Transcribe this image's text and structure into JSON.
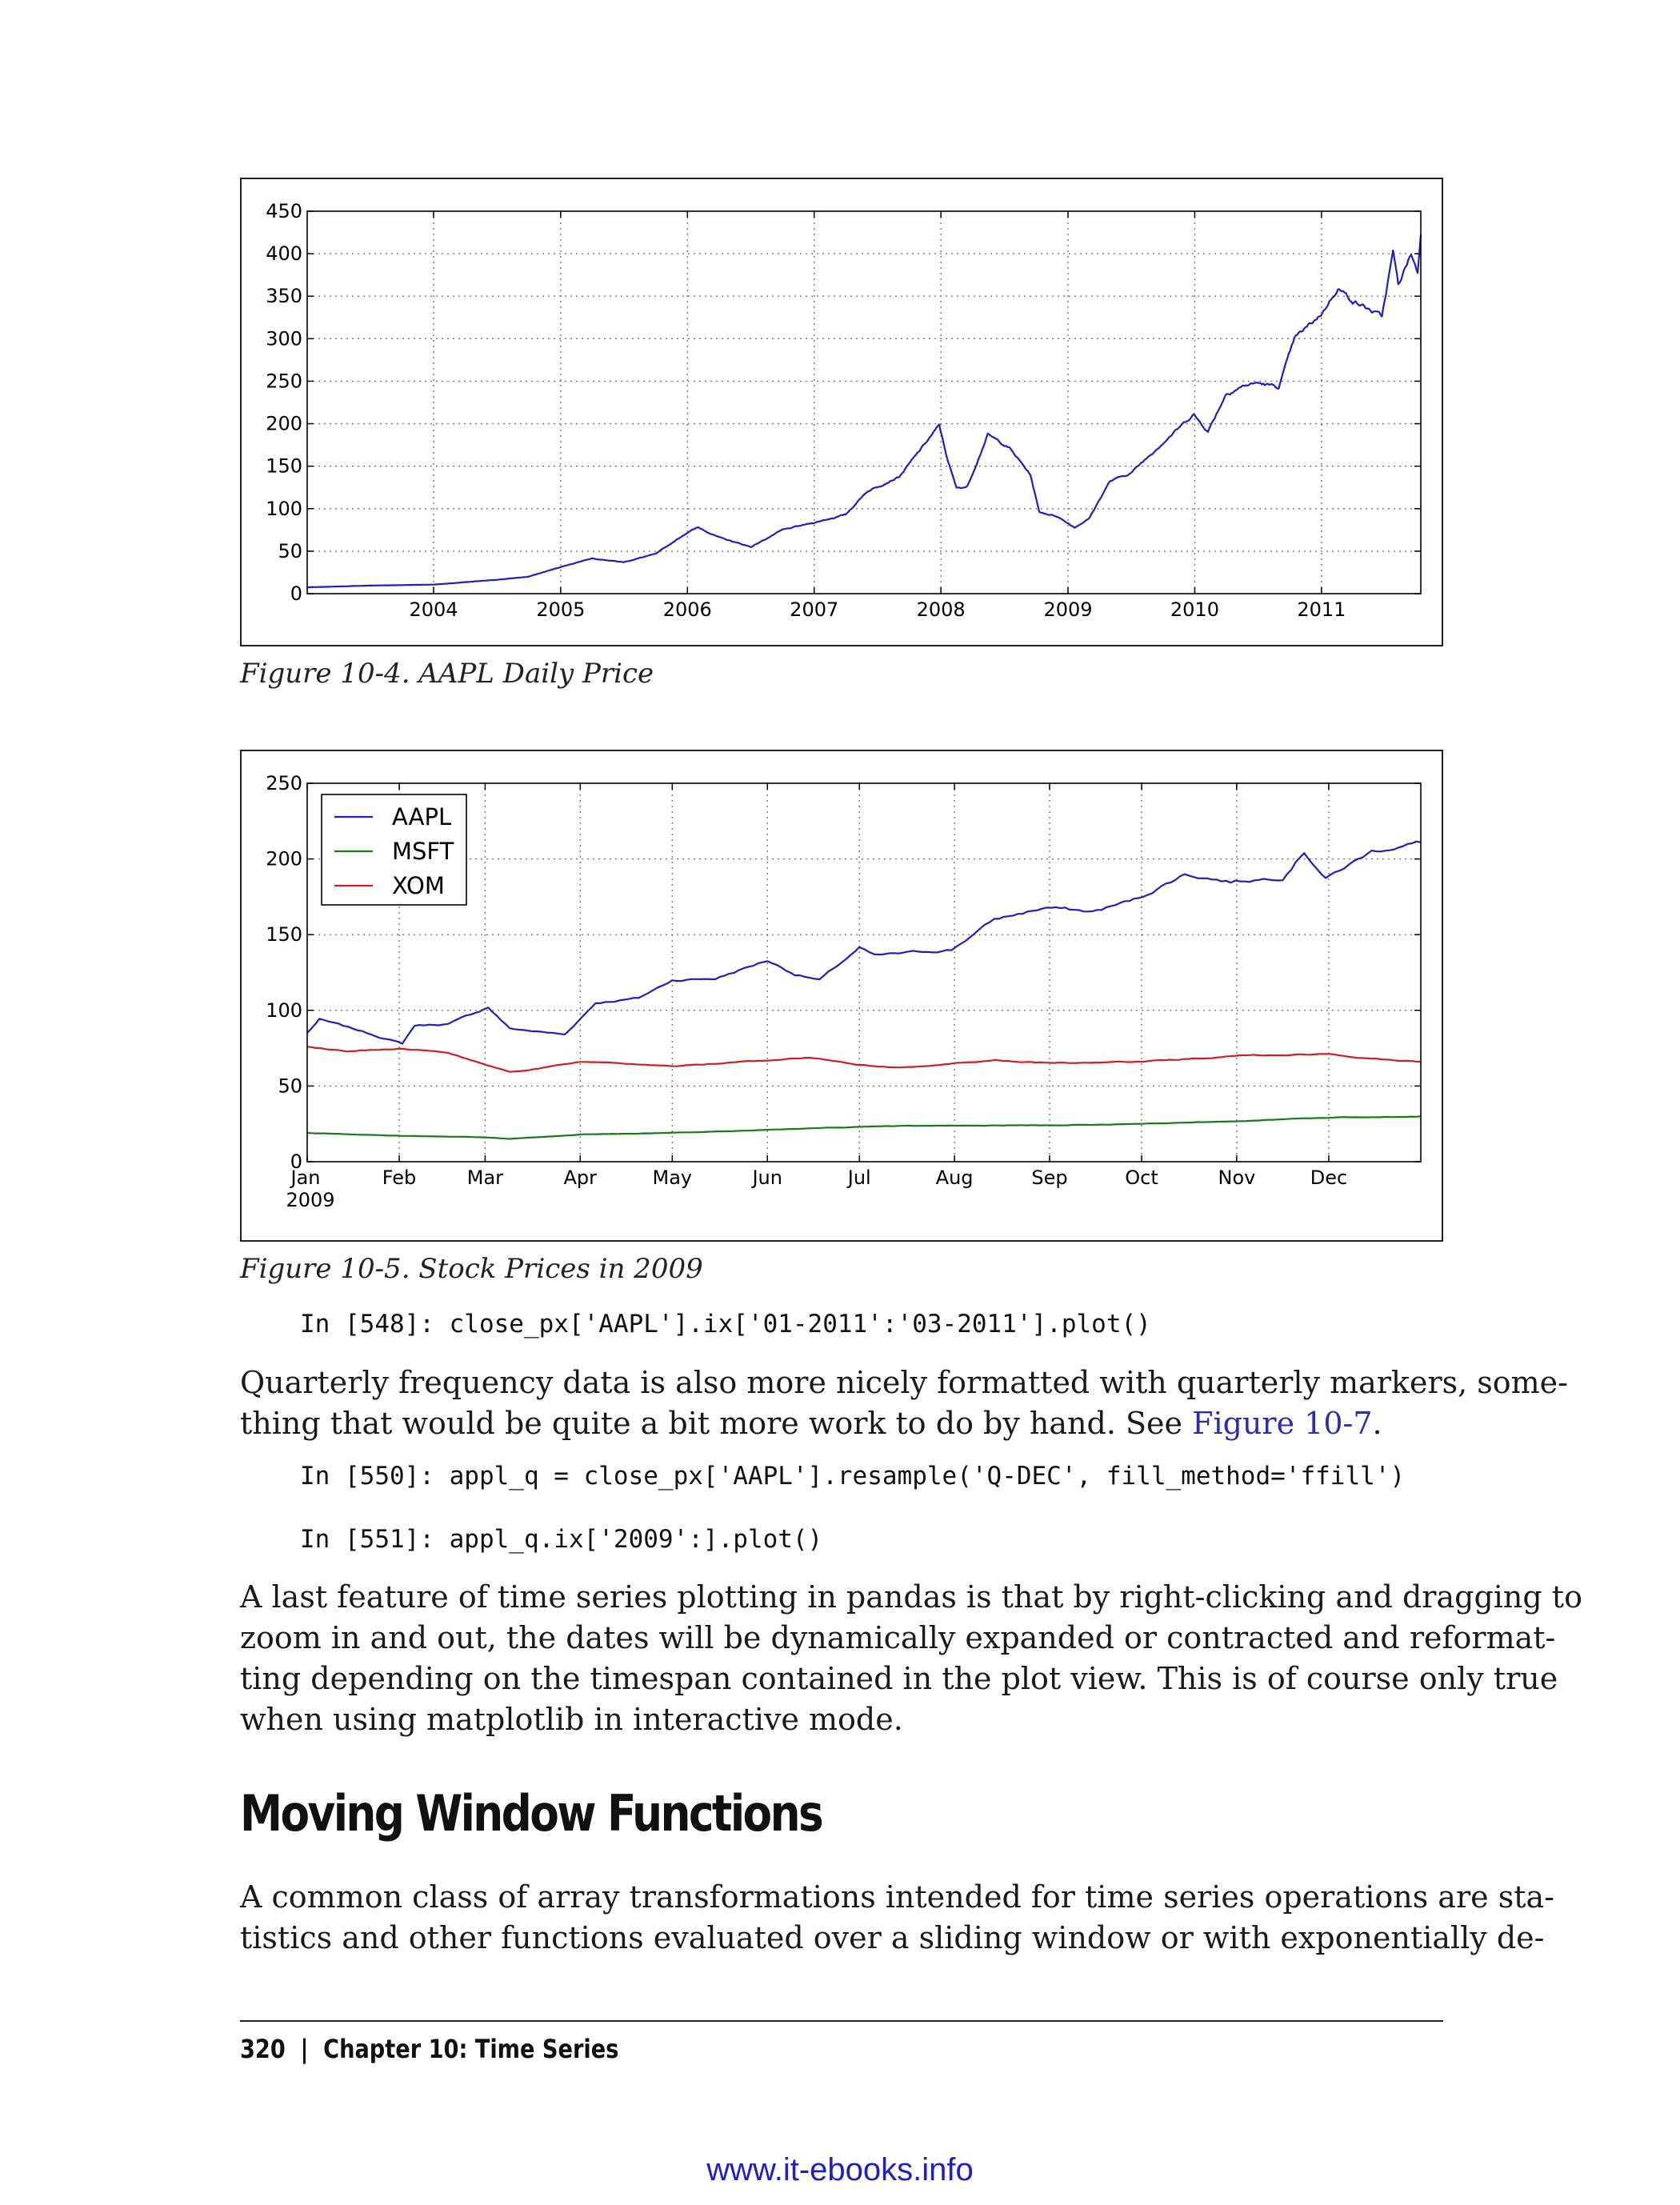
{
  "figure1": {
    "caption": "Figure 10-4. AAPL Daily Price",
    "y_ticks": [
      "0",
      "50",
      "100",
      "150",
      "200",
      "250",
      "300",
      "350",
      "400",
      "450"
    ],
    "x_ticks": [
      "2004",
      "2005",
      "2006",
      "2007",
      "2008",
      "2009",
      "2010",
      "2011"
    ]
  },
  "figure2": {
    "caption": "Figure 10-5. Stock Prices in 2009",
    "y_ticks": [
      "0",
      "50",
      "100",
      "150",
      "200",
      "250"
    ],
    "x_ticks": [
      "Jan",
      "Feb",
      "Mar",
      "Apr",
      "May",
      "Jun",
      "Jul",
      "Aug",
      "Sep",
      "Oct",
      "Nov",
      "Dec"
    ],
    "x_year": "2009",
    "legend": [
      "AAPL",
      "MSFT",
      "XOM"
    ]
  },
  "chart_data": [
    {
      "type": "line",
      "title": "",
      "xlabel": "",
      "ylabel": "",
      "ylim": [
        0,
        450
      ],
      "xlim": [
        "2003-01-02",
        "2011-10-14"
      ],
      "grid": true,
      "legend": "none",
      "series": [
        {
          "color": "#1f1fbf",
          "points": [
            [
              "2003-01-02",
              7.4
            ],
            [
              "2003-07-01",
              9.5
            ],
            [
              "2004-01-02",
              10.7
            ],
            [
              "2004-07-01",
              16.3
            ],
            [
              "2004-10-01",
              20.0
            ],
            [
              "2005-01-03",
              31.6
            ],
            [
              "2005-04-01",
              41.7
            ],
            [
              "2005-07-01",
              37.0
            ],
            [
              "2005-10-03",
              47.0
            ],
            [
              "2006-01-03",
              72.6
            ],
            [
              "2006-02-01",
              78.0
            ],
            [
              "2006-04-03",
              66.0
            ],
            [
              "2006-07-03",
              55.0
            ],
            [
              "2006-10-02",
              75.0
            ],
            [
              "2007-01-03",
              83.8
            ],
            [
              "2007-04-02",
              93.0
            ],
            [
              "2007-06-01",
              120.0
            ],
            [
              "2007-09-04",
              138.0
            ],
            [
              "2007-12-27",
              198.0
            ],
            [
              "2008-01-22",
              155.0
            ],
            [
              "2008-02-15",
              124.0
            ],
            [
              "2008-03-17",
              126.0
            ],
            [
              "2008-05-15",
              187.0
            ],
            [
              "2008-07-15",
              172.0
            ],
            [
              "2008-09-15",
              140.0
            ],
            [
              "2008-10-10",
              96.0
            ],
            [
              "2008-12-01",
              91.0
            ],
            [
              "2009-01-20",
              78.0
            ],
            [
              "2009-03-02",
              88.0
            ],
            [
              "2009-05-01",
              132.0
            ],
            [
              "2009-07-01",
              142.0
            ],
            [
              "2009-09-01",
              166.0
            ],
            [
              "2009-12-28",
              211.0
            ],
            [
              "2010-02-08",
              191.0
            ],
            [
              "2010-04-01",
              235.0
            ],
            [
              "2010-05-25",
              245.0
            ],
            [
              "2010-07-01",
              248.0
            ],
            [
              "2010-08-31",
              243.0
            ],
            [
              "2010-10-15",
              300.0
            ],
            [
              "2011-01-03",
              330.0
            ],
            [
              "2011-02-17",
              360.0
            ],
            [
              "2011-04-01",
              345.0
            ],
            [
              "2011-06-24",
              326.0
            ],
            [
              "2011-07-26",
              402.0
            ],
            [
              "2011-08-10",
              363.0
            ],
            [
              "2011-09-16",
              400.0
            ],
            [
              "2011-10-05",
              378.0
            ],
            [
              "2011-10-14",
              422.0
            ]
          ]
        }
      ]
    },
    {
      "type": "line",
      "title": "",
      "xlabel": "",
      "ylabel": "",
      "ylim": [
        0,
        250
      ],
      "xlim": [
        "2009-01-02",
        "2009-12-31"
      ],
      "grid": true,
      "legend": "top-left",
      "series": [
        {
          "name": "AAPL",
          "color": "#1f1fbf",
          "points": [
            [
              "2009-01-02",
              85
            ],
            [
              "2009-01-06",
              94
            ],
            [
              "2009-01-20",
              86
            ],
            [
              "2009-02-02",
              78
            ],
            [
              "2009-02-06",
              90
            ],
            [
              "2009-02-17",
              91
            ],
            [
              "2009-03-02",
              102
            ],
            [
              "2009-03-09",
              88
            ],
            [
              "2009-03-27",
              84
            ],
            [
              "2009-04-06",
              105
            ],
            [
              "2009-04-20",
              108
            ],
            [
              "2009-05-01",
              120
            ],
            [
              "2009-05-15",
              121
            ],
            [
              "2009-06-01",
              133
            ],
            [
              "2009-06-10",
              124
            ],
            [
              "2009-06-18",
              120
            ],
            [
              "2009-07-01",
              141
            ],
            [
              "2009-07-06",
              136
            ],
            [
              "2009-07-17",
              138
            ],
            [
              "2009-07-31",
              140
            ],
            [
              "2009-08-14",
              160
            ],
            [
              "2009-08-31",
              168
            ],
            [
              "2009-09-15",
              165
            ],
            [
              "2009-09-30",
              174
            ],
            [
              "2009-10-15",
              190
            ],
            [
              "2009-10-30",
              185
            ],
            [
              "2009-11-16",
              188
            ],
            [
              "2009-11-23",
              205
            ],
            [
              "2009-11-30",
              187
            ],
            [
              "2009-12-15",
              205
            ],
            [
              "2009-12-31",
              211
            ]
          ]
        },
        {
          "name": "MSFT",
          "color": "#1a7a1a",
          "points": [
            [
              "2009-01-02",
              19
            ],
            [
              "2009-02-02",
              17
            ],
            [
              "2009-03-02",
              16
            ],
            [
              "2009-03-09",
              15
            ],
            [
              "2009-04-01",
              18
            ],
            [
              "2009-05-01",
              19
            ],
            [
              "2009-06-01",
              21
            ],
            [
              "2009-07-01",
              23
            ],
            [
              "2009-08-03",
              24
            ],
            [
              "2009-09-01",
              24
            ],
            [
              "2009-10-01",
              25
            ],
            [
              "2009-11-02",
              27
            ],
            [
              "2009-12-01",
              29
            ],
            [
              "2009-12-31",
              30
            ]
          ]
        },
        {
          "name": "XOM",
          "color": "#cc1f1f",
          "points": [
            [
              "2009-01-02",
              76
            ],
            [
              "2009-01-15",
              73
            ],
            [
              "2009-02-02",
              75
            ],
            [
              "2009-02-17",
              72
            ],
            [
              "2009-03-09",
              59
            ],
            [
              "2009-03-20",
              62
            ],
            [
              "2009-04-01",
              66
            ],
            [
              "2009-05-01",
              63
            ],
            [
              "2009-06-01",
              67
            ],
            [
              "2009-06-15",
              69
            ],
            [
              "2009-07-01",
              64
            ],
            [
              "2009-07-15",
              62
            ],
            [
              "2009-08-14",
              67
            ],
            [
              "2009-09-01",
              65
            ],
            [
              "2009-10-01",
              66
            ],
            [
              "2009-11-02",
              70
            ],
            [
              "2009-12-01",
              71
            ],
            [
              "2009-12-15",
              68
            ],
            [
              "2009-12-31",
              66
            ]
          ]
        }
      ]
    }
  ],
  "code1": "In [548]: close_px['AAPL'].ix['01-2011':'03-2011'].plot()",
  "para1": {
    "line1": "Quarterly frequency data is also more nicely formatted with quarterly markers, some-",
    "line2_pre": "thing that would be quite a bit more work to do by hand. See ",
    "line2_link": "Figure 10-7",
    "line2_post": "."
  },
  "code2": "In [550]: appl_q = close_px['AAPL'].resample('Q-DEC', fill_method='ffill')",
  "code3": "In [551]: appl_q.ix['2009':].plot()",
  "para2": [
    "A last feature of time series plotting in pandas is that by right-clicking and dragging to",
    "zoom in and out, the dates will be dynamically expanded or contracted and reformat-",
    "ting depending on the timespan contained in the plot view. This is of course only true",
    "when using matplotlib in interactive mode."
  ],
  "heading": "Moving Window Functions",
  "para3": [
    "A common class of array transformations intended for time series operations are sta-",
    "tistics and other functions evaluated over a sliding window or with exponentially de-"
  ],
  "footer": {
    "page_number": "320",
    "separator": "|",
    "chapter": "Chapter 10:  Time Series"
  },
  "watermark": "www.it-ebooks.info"
}
